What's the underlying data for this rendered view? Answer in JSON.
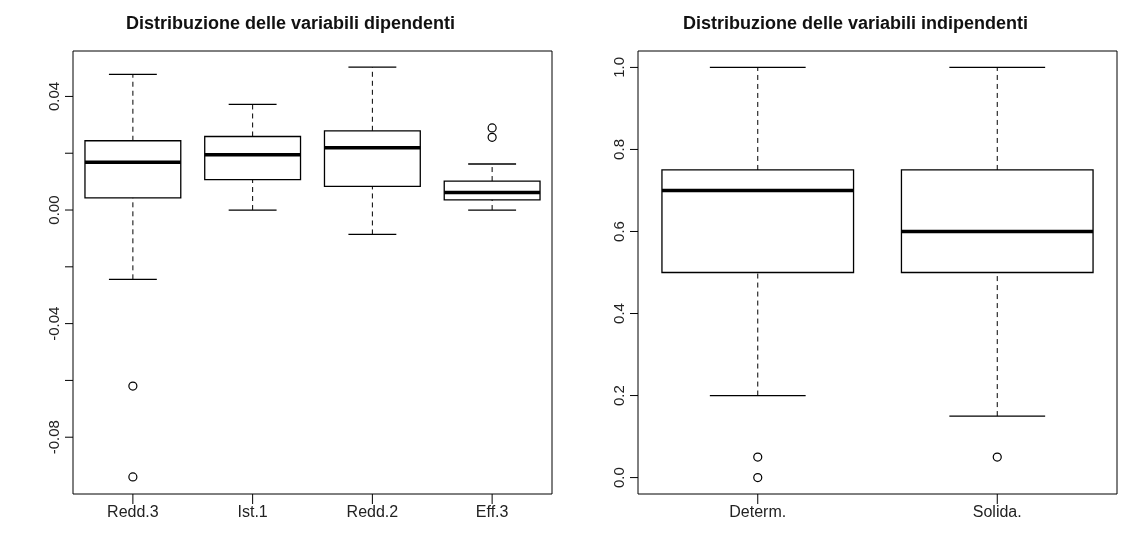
{
  "chart_data": [
    {
      "type": "box",
      "title": "Distribuzione delle variabili dipendenti",
      "categories": [
        "Redd.3",
        "Ist.1",
        "Redd.2",
        "Eff.3"
      ],
      "boxes": [
        {
          "low": -0.0244,
          "q1": 0.0043,
          "median": 0.0168,
          "q3": 0.0244,
          "high": 0.0478,
          "outliers": [
            -0.062,
            -0.094
          ]
        },
        {
          "low": 0.0,
          "q1": 0.0107,
          "median": 0.0195,
          "q3": 0.0259,
          "high": 0.0372
        },
        {
          "low": -0.0086,
          "q1": 0.0083,
          "median": 0.0219,
          "q3": 0.0279,
          "high": 0.0503
        },
        {
          "low": 0.0,
          "q1": 0.0036,
          "median": 0.0062,
          "q3": 0.0102,
          "high": 0.0162,
          "outliers": [
            0.0289,
            0.0256
          ]
        }
      ],
      "ylim": [
        -0.1,
        0.056
      ],
      "yticks": [
        -0.08,
        {
          "value": -0.06,
          "label": null
        },
        -0.04,
        {
          "value": -0.02,
          "label": null
        },
        {
          "value": 0,
          "label": "0.00"
        },
        {
          "value": 0.02,
          "label": null
        },
        0.04
      ]
    },
    {
      "type": "box",
      "title": "Distribuzione delle variabili indipendenti",
      "categories": [
        "Determ.",
        "Solida."
      ],
      "boxes": [
        {
          "low": 0.2,
          "q1": 0.5,
          "median": 0.7,
          "q3": 0.75,
          "high": 1.0,
          "outliers": [
            0.05,
            0.0
          ]
        },
        {
          "low": 0.15,
          "q1": 0.5,
          "median": 0.6,
          "q3": 0.75,
          "high": 1.0,
          "outliers": [
            0.05
          ]
        }
      ],
      "ylim": [
        -0.04,
        1.04
      ],
      "yticks": [
        {
          "value": 0,
          "label": "0.0"
        },
        0.2,
        0.4,
        0.6,
        0.8,
        {
          "value": 1,
          "label": "1.0"
        }
      ]
    }
  ]
}
